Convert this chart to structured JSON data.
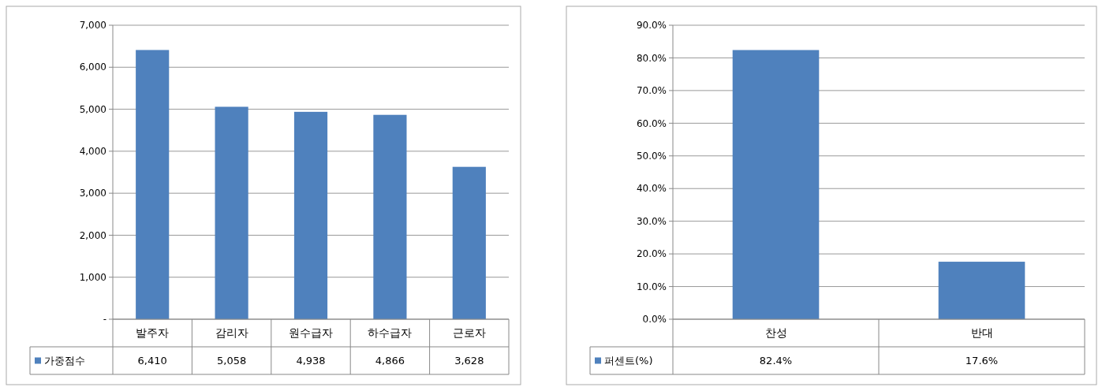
{
  "chart_data": [
    {
      "type": "bar",
      "categories": [
        "발주자",
        "감리자",
        "원수급자",
        "하수급자",
        "근로자"
      ],
      "series": [
        {
          "name": "가중점수",
          "color": "#4f81bd",
          "values": [
            6410,
            5058,
            4938,
            4866,
            3628
          ],
          "value_labels": [
            "6,410",
            "5,058",
            "4,938",
            "4,866",
            "3,628"
          ]
        }
      ],
      "ylim": [
        0,
        7000
      ],
      "yticks": [
        {
          "value": 0,
          "label": "-"
        },
        {
          "value": 1000,
          "label": "1,000"
        },
        {
          "value": 2000,
          "label": "2,000"
        },
        {
          "value": 3000,
          "label": "3,000"
        },
        {
          "value": 4000,
          "label": "4,000"
        },
        {
          "value": 5000,
          "label": "5,000"
        },
        {
          "value": 6000,
          "label": "6,000"
        },
        {
          "value": 7000,
          "label": "7,000"
        }
      ],
      "grid": "y",
      "legend": "bottom"
    },
    {
      "type": "bar",
      "categories": [
        "찬성",
        "반대"
      ],
      "series": [
        {
          "name": "퍼센트(%)",
          "color": "#4f81bd",
          "values": [
            82.4,
            17.6
          ],
          "value_labels": [
            "82.4%",
            "17.6%"
          ]
        }
      ],
      "ylim": [
        0,
        90
      ],
      "yticks": [
        {
          "value": 0,
          "label": "0.0%"
        },
        {
          "value": 10,
          "label": "10.0%"
        },
        {
          "value": 20,
          "label": "20.0%"
        },
        {
          "value": 30,
          "label": "30.0%"
        },
        {
          "value": 40,
          "label": "40.0%"
        },
        {
          "value": 50,
          "label": "50.0%"
        },
        {
          "value": 60,
          "label": "60.0%"
        },
        {
          "value": 70,
          "label": "70.0%"
        },
        {
          "value": 80,
          "label": "80.0%"
        },
        {
          "value": 90,
          "label": "90.0%"
        }
      ],
      "grid": "y",
      "legend": "bottom"
    }
  ]
}
